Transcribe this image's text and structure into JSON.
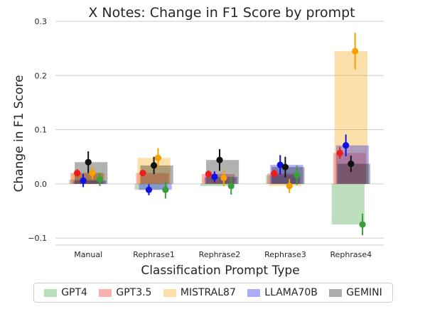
{
  "chart_data": {
    "type": "bar",
    "title": "X Notes: Change in F1 Score by prompt",
    "xlabel": "Classification Prompt Type",
    "ylabel": "Change in F1 Score",
    "categories": [
      "Manual",
      "Rephrase1",
      "Rephrase2",
      "Rephrase3",
      "Rephrase4"
    ],
    "ylim": [
      -0.113,
      0.3
    ],
    "yticks": [
      -0.1,
      0.0,
      0.1,
      0.2,
      0.3
    ],
    "ytick_labels": [
      "−0.1",
      "0.0",
      "0.1",
      "0.2",
      "0.3"
    ],
    "grid": "horizontal",
    "legend_position": "bottom",
    "series": [
      {
        "name": "GPT4",
        "color": "#3a9e3a",
        "values": [
          0.008,
          -0.011,
          -0.004,
          0.016,
          -0.075
        ],
        "err": [
          0.012,
          0.016,
          0.016,
          0.018,
          0.02
        ]
      },
      {
        "name": "GPT3.5",
        "color": "#ee1c1c",
        "values": [
          0.02,
          0.02,
          0.018,
          0.019,
          0.057
        ],
        "err": [
          0.007,
          0.006,
          0.007,
          0.007,
          0.011
        ]
      },
      {
        "name": "MISTRAL87",
        "color": "#f5a100",
        "values": [
          0.02,
          0.048,
          0.011,
          -0.004,
          0.245
        ],
        "err": [
          0.012,
          0.018,
          0.015,
          0.013,
          0.034
        ]
      },
      {
        "name": "LLAMA70B",
        "color": "#1010e6",
        "values": [
          0.006,
          -0.011,
          0.013,
          0.035,
          0.071
        ],
        "err": [
          0.012,
          0.01,
          0.01,
          0.018,
          0.02
        ]
      },
      {
        "name": "GEMINI",
        "color": "#111111",
        "values": [
          0.04,
          0.034,
          0.044,
          0.031,
          0.037
        ],
        "err": [
          0.02,
          0.016,
          0.02,
          0.019,
          0.015
        ]
      }
    ]
  }
}
